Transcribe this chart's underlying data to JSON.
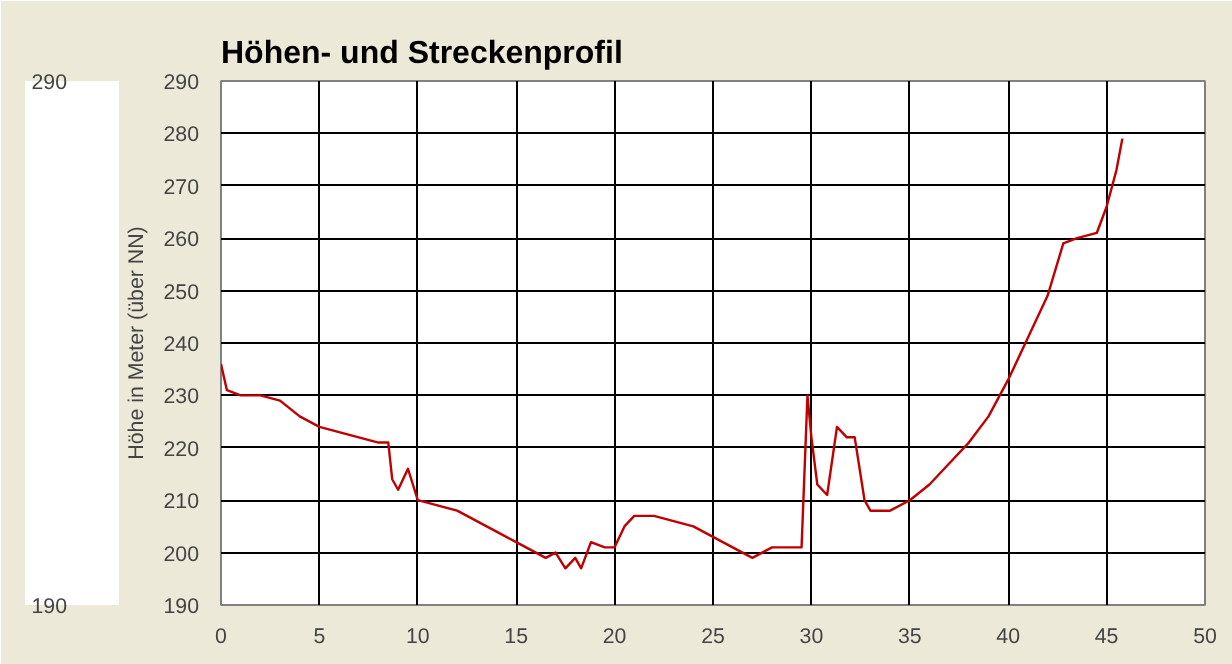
{
  "chart_data": {
    "type": "line",
    "title": "Höhen- und Streckenprofil",
    "ylabel": "Höhe in Meter (über NN)",
    "x": [
      0,
      0.3,
      1,
      2,
      3,
      4,
      5,
      6,
      7,
      8,
      8.5,
      8.7,
      9,
      9.5,
      10,
      11,
      12,
      13,
      14,
      15,
      16,
      16.5,
      17,
      17.5,
      18,
      18.3,
      18.8,
      19.5,
      20,
      20.5,
      21,
      22,
      23,
      24,
      25,
      26,
      27,
      28,
      29,
      29.5,
      29.8,
      30,
      30.3,
      30.8,
      31.3,
      31.8,
      32.2,
      32.7,
      33,
      34,
      35,
      36,
      37,
      38,
      39,
      40,
      41,
      42,
      42.8,
      43.5,
      44.5,
      45,
      45.5,
      45.8
    ],
    "series": [
      {
        "color": "#c00000",
        "values": [
          236,
          231,
          230,
          230,
          229,
          226,
          224,
          223,
          222,
          221,
          221,
          214,
          212,
          216,
          210,
          209,
          208,
          206,
          204,
          202,
          200,
          199,
          200,
          197,
          199,
          197,
          202,
          201,
          201,
          205,
          207,
          207,
          206,
          205,
          203,
          201,
          199,
          201,
          201,
          201,
          230,
          222,
          213,
          211,
          224,
          222,
          222,
          210,
          208,
          208,
          210,
          213,
          217,
          221,
          226,
          233,
          241,
          249,
          259,
          260,
          261,
          266,
          273,
          279
        ]
      }
    ],
    "xlim": [
      0,
      50
    ],
    "ylim": [
      190,
      290
    ],
    "xticks": [
      0,
      5,
      10,
      15,
      20,
      25,
      30,
      35,
      40,
      45,
      50
    ],
    "yticks": [
      190,
      200,
      210,
      220,
      230,
      240,
      250,
      260,
      270,
      280,
      290
    ],
    "grid": true,
    "marker": "none",
    "line_style": "solid",
    "annotations": [
      "290",
      "190"
    ]
  }
}
